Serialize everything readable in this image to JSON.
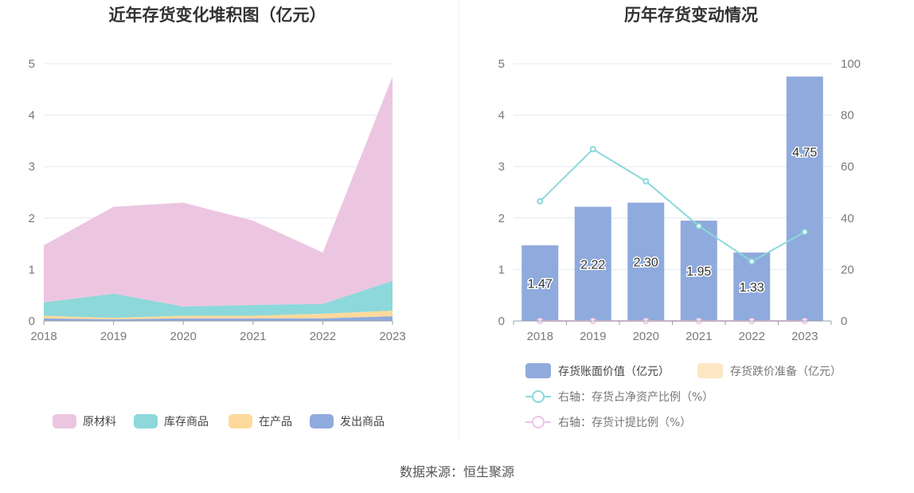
{
  "source_text": "数据来源：恒生聚源",
  "chart_data": [
    {
      "type": "area",
      "title": "近年存货变化堆积图（亿元）",
      "x": [
        "2018",
        "2019",
        "2020",
        "2021",
        "2022",
        "2023"
      ],
      "ylim": [
        0,
        5
      ],
      "yticks": [
        0,
        1,
        2,
        3,
        4,
        5
      ],
      "stacked": true,
      "grid": true,
      "legend_position": "bottom",
      "series": [
        {
          "name": "发出商品",
          "values": [
            0.05,
            0.03,
            0.05,
            0.05,
            0.05,
            0.09
          ],
          "color": "#8faadc"
        },
        {
          "name": "在产品",
          "values": [
            0.05,
            0.03,
            0.05,
            0.05,
            0.09,
            0.11
          ],
          "color": "#fdd99b"
        },
        {
          "name": "库存商品",
          "values": [
            0.26,
            0.47,
            0.18,
            0.21,
            0.19,
            0.58
          ],
          "color": "#8cd8da"
        },
        {
          "name": "原材料",
          "values": [
            1.11,
            1.69,
            2.02,
            1.64,
            1.0,
            3.97
          ],
          "color": "#ecc6e1"
        }
      ],
      "legend_order": [
        "原材料",
        "库存商品",
        "在产品",
        "发出商品"
      ]
    },
    {
      "type": "bar",
      "title": "历年存货变动情况",
      "categories": [
        "2018",
        "2019",
        "2020",
        "2021",
        "2022",
        "2023"
      ],
      "ylim": [
        0,
        5
      ],
      "yticks": [
        0,
        1,
        2,
        3,
        4,
        5
      ],
      "y2lim": [
        0,
        100
      ],
      "y2ticks": [
        0,
        20,
        40,
        60,
        80,
        100
      ],
      "grid": true,
      "legend_position": "bottom",
      "series": [
        {
          "name": "存货账面价值（亿元）",
          "kind": "bar",
          "axis": "left",
          "values": [
            1.47,
            2.22,
            2.3,
            1.95,
            1.33,
            4.75
          ],
          "labels": [
            "1.47",
            "2.22",
            "2.30",
            "1.95",
            "1.33",
            "4.75"
          ],
          "color": "#8faadc"
        },
        {
          "name": "存货跌价准备（亿元）",
          "kind": "bar",
          "axis": "left",
          "values": [
            0,
            0,
            0,
            0,
            0,
            0
          ],
          "color": "#fde6c4"
        },
        {
          "name": "右轴：存货占净资产比例（%）",
          "kind": "line",
          "axis": "right",
          "values": [
            46.5,
            66.8,
            54.3,
            36.9,
            23.1,
            34.6
          ],
          "color": "#8cd8da"
        },
        {
          "name": "右轴：存货计提比例（%）",
          "kind": "line",
          "axis": "right",
          "values": [
            0,
            0,
            0,
            0,
            0,
            0
          ],
          "color": "#f0c2e6"
        }
      ]
    }
  ]
}
